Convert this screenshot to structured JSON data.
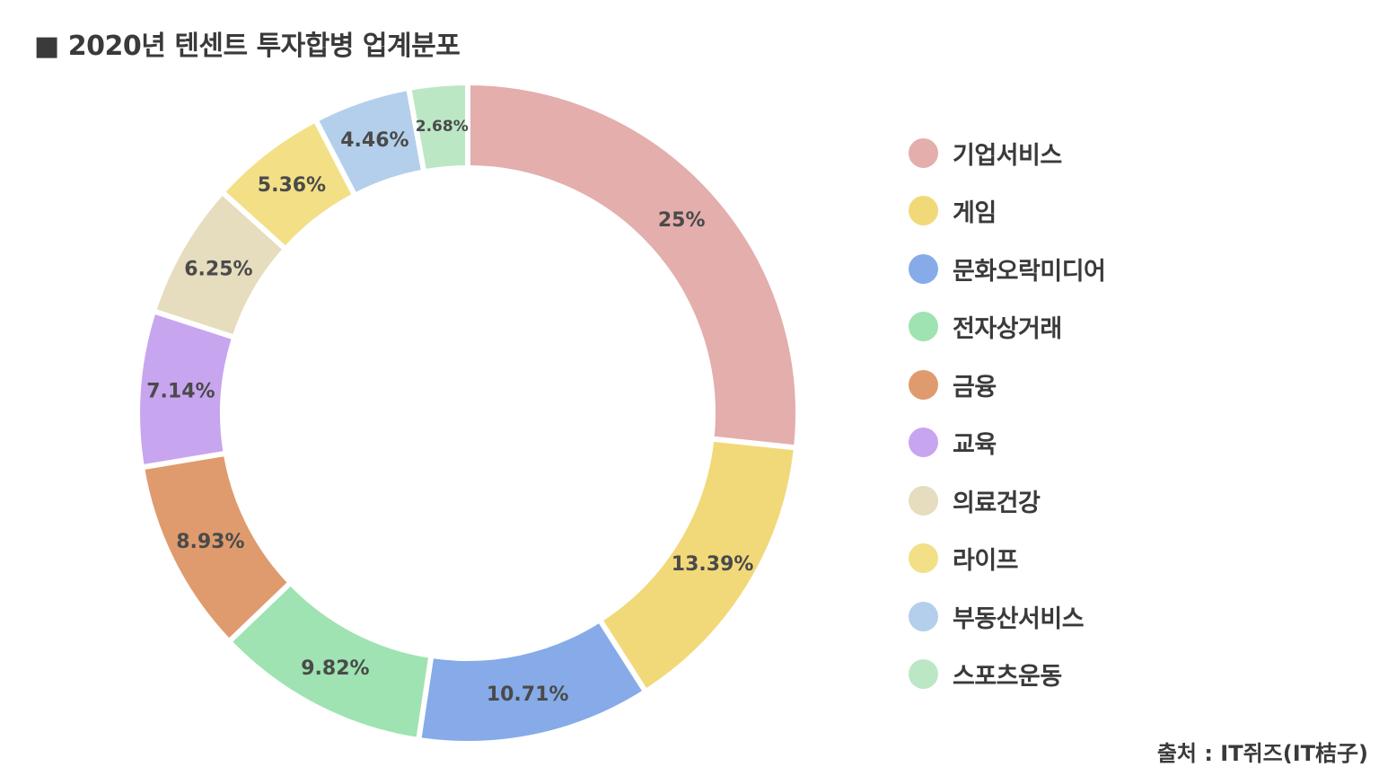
{
  "title": "■ 2020년 텐센트 투자합병 업계분포",
  "source": "출처 : IT쥐즈(IT桔子)",
  "chart_data": {
    "type": "pie",
    "donut": true,
    "categories": [
      "기업서비스",
      "게임",
      "문화오락미디어",
      "전자상거래",
      "금융",
      "교육",
      "의료건강",
      "라이프",
      "부동산서비스",
      "스포츠운동"
    ],
    "values": [
      25,
      13.39,
      10.71,
      9.82,
      8.93,
      7.14,
      6.25,
      5.36,
      4.46,
      2.68
    ],
    "data_labels": [
      "25%",
      "13.39%",
      "10.71%",
      "9.82%",
      "8.93%",
      "7.14%",
      "6.25%",
      "5.36%",
      "4.46%",
      "2.68%"
    ],
    "colors": [
      "#e3aeac",
      "#f1d97a",
      "#86abe8",
      "#9ee3b1",
      "#df9b6d",
      "#c8a5ef",
      "#e6dcbe",
      "#f3df86",
      "#b3cfeb",
      "#bce7c5"
    ],
    "start_angle": "top",
    "direction": "clockwise",
    "legend_position": "right"
  }
}
